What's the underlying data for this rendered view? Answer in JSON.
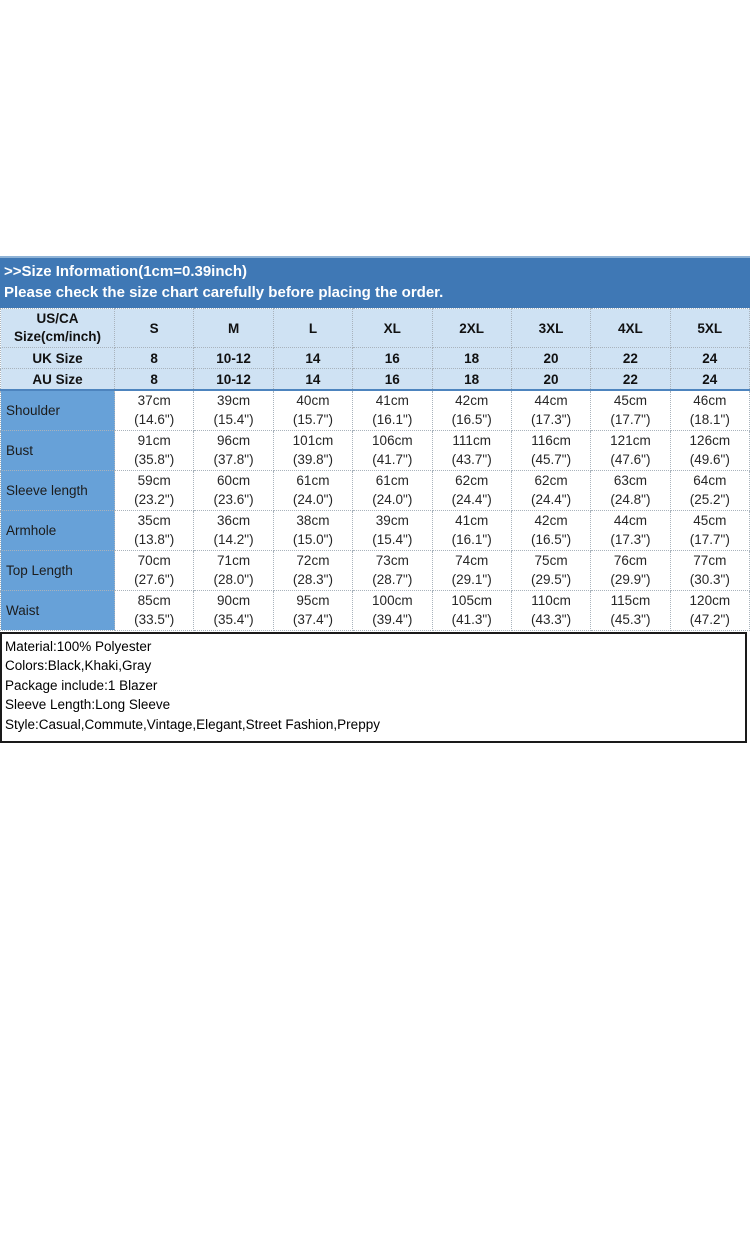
{
  "banner": {
    "line1": ">>Size Information(1cm=0.39inch)",
    "line2": "Please check the size chart carefully before placing the order."
  },
  "size_table": {
    "corner_header": [
      "US/CA",
      "Size(cm/inch)"
    ],
    "size_columns": [
      "S",
      "M",
      "L",
      "XL",
      "2XL",
      "3XL",
      "4XL",
      "5XL"
    ],
    "region_rows": [
      {
        "label": "UK Size",
        "values": [
          "8",
          "10-12",
          "14",
          "16",
          "18",
          "20",
          "22",
          "24"
        ]
      },
      {
        "label": "AU Size",
        "values": [
          "8",
          "10-12",
          "14",
          "16",
          "18",
          "20",
          "22",
          "24"
        ]
      }
    ],
    "measurement_rows": [
      {
        "label": "Shoulder",
        "values": [
          {
            "cm": "37cm",
            "inch": "(14.6\")"
          },
          {
            "cm": "39cm",
            "inch": "(15.4\")"
          },
          {
            "cm": "40cm",
            "inch": "(15.7\")"
          },
          {
            "cm": "41cm",
            "inch": "(16.1\")"
          },
          {
            "cm": "42cm",
            "inch": "(16.5\")"
          },
          {
            "cm": "44cm",
            "inch": "(17.3\")"
          },
          {
            "cm": "45cm",
            "inch": "(17.7\")"
          },
          {
            "cm": "46cm",
            "inch": "(18.1\")"
          }
        ]
      },
      {
        "label": "Bust",
        "values": [
          {
            "cm": "91cm",
            "inch": "(35.8\")"
          },
          {
            "cm": "96cm",
            "inch": "(37.8\")"
          },
          {
            "cm": "101cm",
            "inch": "(39.8\")"
          },
          {
            "cm": "106cm",
            "inch": "(41.7\")"
          },
          {
            "cm": "111cm",
            "inch": "(43.7\")"
          },
          {
            "cm": "116cm",
            "inch": "(45.7\")"
          },
          {
            "cm": "121cm",
            "inch": "(47.6\")"
          },
          {
            "cm": "126cm",
            "inch": "(49.6\")"
          }
        ]
      },
      {
        "label": "Sleeve length",
        "values": [
          {
            "cm": "59cm",
            "inch": "(23.2\")"
          },
          {
            "cm": "60cm",
            "inch": "(23.6\")"
          },
          {
            "cm": "61cm",
            "inch": "(24.0\")"
          },
          {
            "cm": "61cm",
            "inch": "(24.0\")"
          },
          {
            "cm": "62cm",
            "inch": "(24.4\")"
          },
          {
            "cm": "62cm",
            "inch": "(24.4\")"
          },
          {
            "cm": "63cm",
            "inch": "(24.8\")"
          },
          {
            "cm": "64cm",
            "inch": "(25.2\")"
          }
        ]
      },
      {
        "label": "Armhole",
        "values": [
          {
            "cm": "35cm",
            "inch": "(13.8\")"
          },
          {
            "cm": "36cm",
            "inch": "(14.2\")"
          },
          {
            "cm": "38cm",
            "inch": "(15.0\")"
          },
          {
            "cm": "39cm",
            "inch": "(15.4\")"
          },
          {
            "cm": "41cm",
            "inch": "(16.1\")"
          },
          {
            "cm": "42cm",
            "inch": "(16.5\")"
          },
          {
            "cm": "44cm",
            "inch": "(17.3\")"
          },
          {
            "cm": "45cm",
            "inch": "(17.7\")"
          }
        ]
      },
      {
        "label": "Top Length",
        "values": [
          {
            "cm": "70cm",
            "inch": "(27.6\")"
          },
          {
            "cm": "71cm",
            "inch": "(28.0\")"
          },
          {
            "cm": "72cm",
            "inch": "(28.3\")"
          },
          {
            "cm": "73cm",
            "inch": "(28.7\")"
          },
          {
            "cm": "74cm",
            "inch": "(29.1\")"
          },
          {
            "cm": "75cm",
            "inch": "(29.5\")"
          },
          {
            "cm": "76cm",
            "inch": "(29.9\")"
          },
          {
            "cm": "77cm",
            "inch": "(30.3\")"
          }
        ]
      },
      {
        "label": "Waist",
        "values": [
          {
            "cm": "85cm",
            "inch": "(33.5\")"
          },
          {
            "cm": "90cm",
            "inch": "(35.4\")"
          },
          {
            "cm": "95cm",
            "inch": "(37.4\")"
          },
          {
            "cm": "100cm",
            "inch": "(39.4\")"
          },
          {
            "cm": "105cm",
            "inch": "(41.3\")"
          },
          {
            "cm": "110cm",
            "inch": "(43.3\")"
          },
          {
            "cm": "115cm",
            "inch": "(45.3\")"
          },
          {
            "cm": "120cm",
            "inch": "(47.2\")"
          }
        ]
      }
    ]
  },
  "product_info": {
    "lines": [
      "Material:100% Polyester",
      "Colors:Black,Khaki,Gray",
      "Package include:1 Blazer",
      "Sleeve Length:Long Sleeve",
      "Style:Casual,Commute,Vintage,Elegant,Street Fashion,Preppy"
    ]
  },
  "colors": {
    "banner_blue": "#3f78b5",
    "header_light_blue": "#cfe2f3",
    "label_column_blue": "#67a1d8",
    "separator_blue": "#4d84be",
    "info_border": "#1a1a1a"
  }
}
